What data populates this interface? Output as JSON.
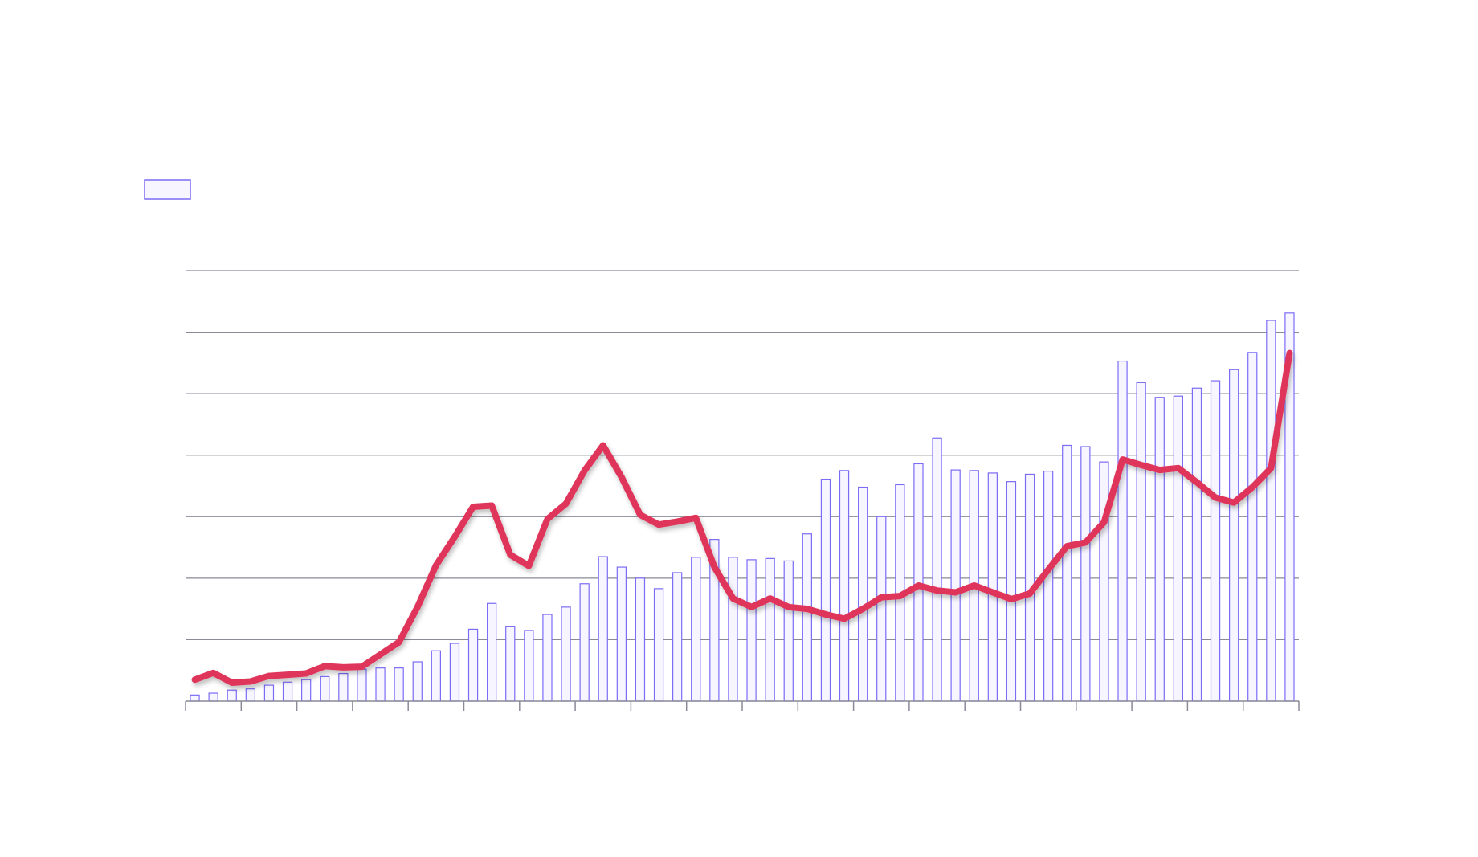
{
  "chart_data": {
    "type": "bar+line",
    "title": "",
    "xlabel": "",
    "ylabel": "",
    "grid": true,
    "legend_placement": "top",
    "ylim": [
      0,
      7
    ],
    "line_ylim": [
      0,
      7
    ],
    "colors": {
      "bar_fill": "#f7f5ff",
      "bar_stroke": "#7b6cf6",
      "line": "#e0345a",
      "grid": "#8a8a99",
      "axis": "#8a8a99"
    },
    "series": [
      {
        "name": "",
        "type": "bar",
        "values": [
          0.1,
          0.13,
          0.18,
          0.2,
          0.26,
          0.31,
          0.35,
          0.4,
          0.45,
          0.52,
          0.54,
          0.54,
          0.64,
          0.82,
          0.94,
          1.17,
          1.59,
          1.21,
          1.15,
          1.41,
          1.53,
          1.91,
          2.35,
          2.18,
          2.0,
          1.83,
          2.09,
          2.34,
          2.63,
          2.34,
          2.3,
          2.32,
          2.28,
          2.72,
          3.61,
          3.75,
          3.48,
          3.0,
          3.52,
          3.86,
          4.28,
          3.76,
          3.75,
          3.71,
          3.57,
          3.69,
          3.74,
          4.16,
          4.14,
          3.89,
          5.53,
          5.18,
          4.94,
          4.96,
          5.09,
          5.21,
          5.39,
          5.67,
          6.19,
          6.31
        ]
      },
      {
        "name": "",
        "type": "line",
        "values": [
          0.35,
          0.46,
          0.3,
          0.32,
          0.41,
          0.43,
          0.45,
          0.57,
          0.55,
          0.56,
          0.76,
          0.96,
          1.53,
          2.21,
          2.67,
          3.16,
          3.18,
          2.38,
          2.2,
          2.96,
          3.21,
          3.75,
          4.16,
          3.64,
          3.03,
          2.87,
          2.92,
          2.98,
          2.18,
          1.67,
          1.53,
          1.67,
          1.53,
          1.5,
          1.41,
          1.34,
          1.5,
          1.69,
          1.71,
          1.88,
          1.8,
          1.77,
          1.88,
          1.77,
          1.66,
          1.75,
          2.14,
          2.52,
          2.58,
          2.91,
          3.93,
          3.84,
          3.76,
          3.79,
          3.56,
          3.31,
          3.23,
          3.48,
          3.79,
          5.66
        ]
      }
    ]
  }
}
